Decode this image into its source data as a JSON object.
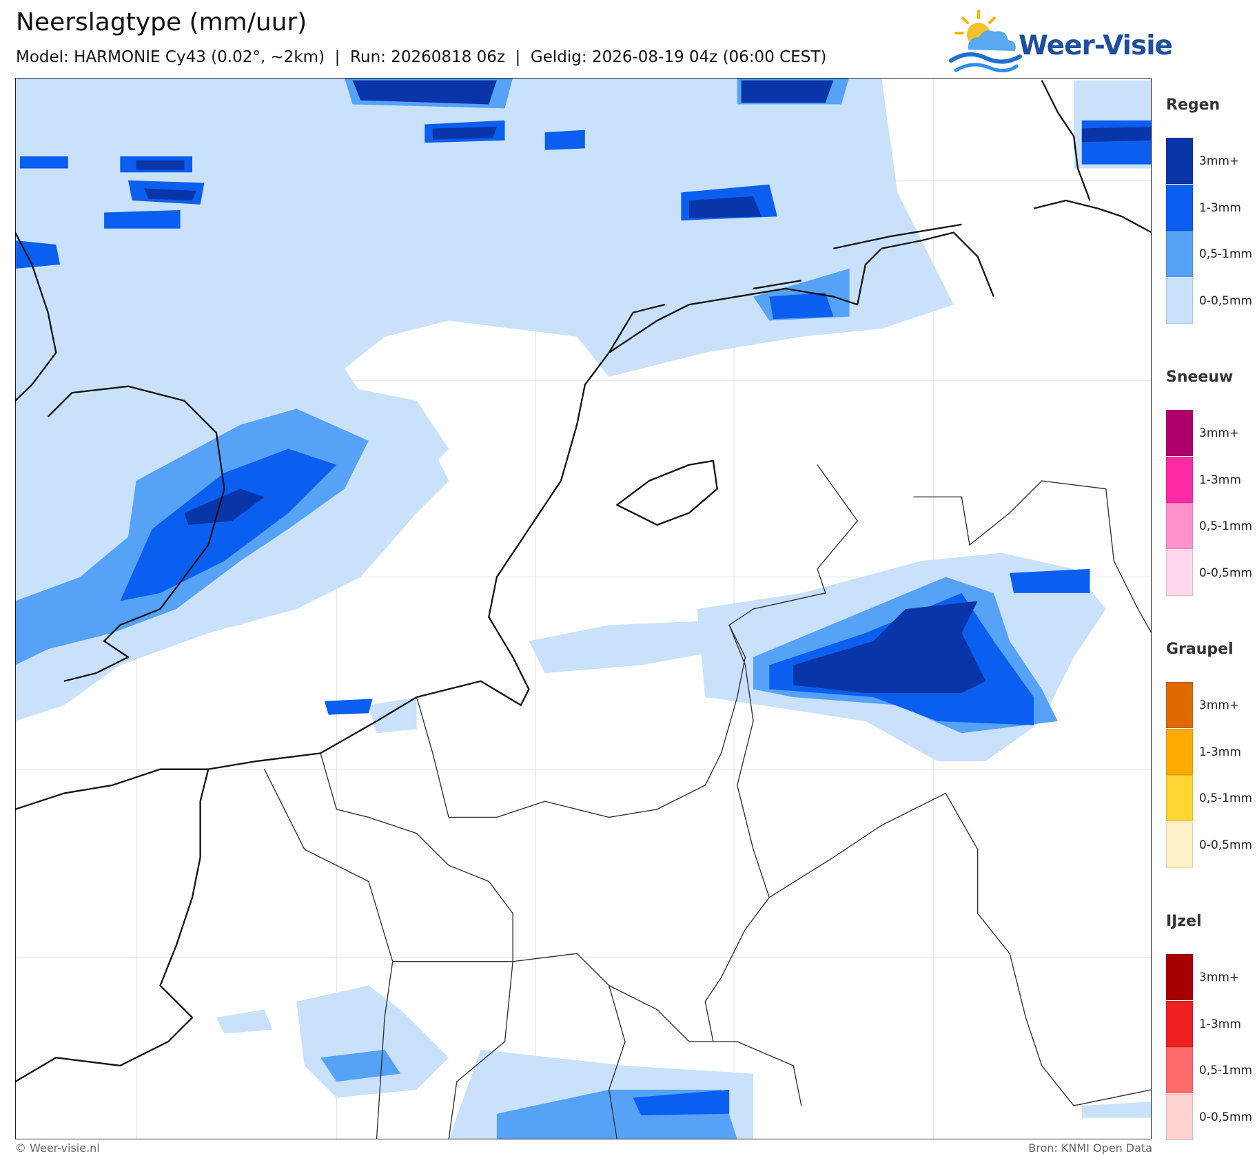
{
  "header": {
    "title": "Neerslagtype (mm/uur)",
    "subtitle": "Model: HARMONIE Cy43 (0.02°, ~2km)  |  Run: 20260818 06z  |  Geldig: 2026-08-19 04z (06:00 CEST)"
  },
  "logo": {
    "text": "Weer-Visie"
  },
  "legend": [
    {
      "title": "Regen",
      "items": [
        {
          "label": "3mm+",
          "color": "#0a35a8"
        },
        {
          "label": "1-3mm",
          "color": "#0a5ef0"
        },
        {
          "label": "0,5-1mm",
          "color": "#55a2f7"
        },
        {
          "label": "0-0,5mm",
          "color": "#c9e1fb"
        }
      ]
    },
    {
      "title": "Sneeuw",
      "items": [
        {
          "label": "3mm+",
          "color": "#b0006e"
        },
        {
          "label": "1-3mm",
          "color": "#ff2aa6"
        },
        {
          "label": "0,5-1mm",
          "color": "#ff92cf"
        },
        {
          "label": "0-0,5mm",
          "color": "#ffd8ee"
        }
      ]
    },
    {
      "title": "Graupel",
      "items": [
        {
          "label": "3mm+",
          "color": "#df6a00"
        },
        {
          "label": "1-3mm",
          "color": "#ffaa00"
        },
        {
          "label": "0,5-1mm",
          "color": "#ffd633"
        },
        {
          "label": "0-0,5mm",
          "color": "#fff2c6"
        }
      ]
    },
    {
      "title": "IJzel",
      "items": [
        {
          "label": "3mm+",
          "color": "#a80000"
        },
        {
          "label": "1-3mm",
          "color": "#ee2020"
        },
        {
          "label": "0,5-1mm",
          "color": "#ff6a6a"
        },
        {
          "label": "0-0,5mm",
          "color": "#ffd2d2"
        }
      ]
    }
  ],
  "footer": {
    "left": "© Weer-visie.nl",
    "right": "Bron: KNMI Open Data"
  }
}
